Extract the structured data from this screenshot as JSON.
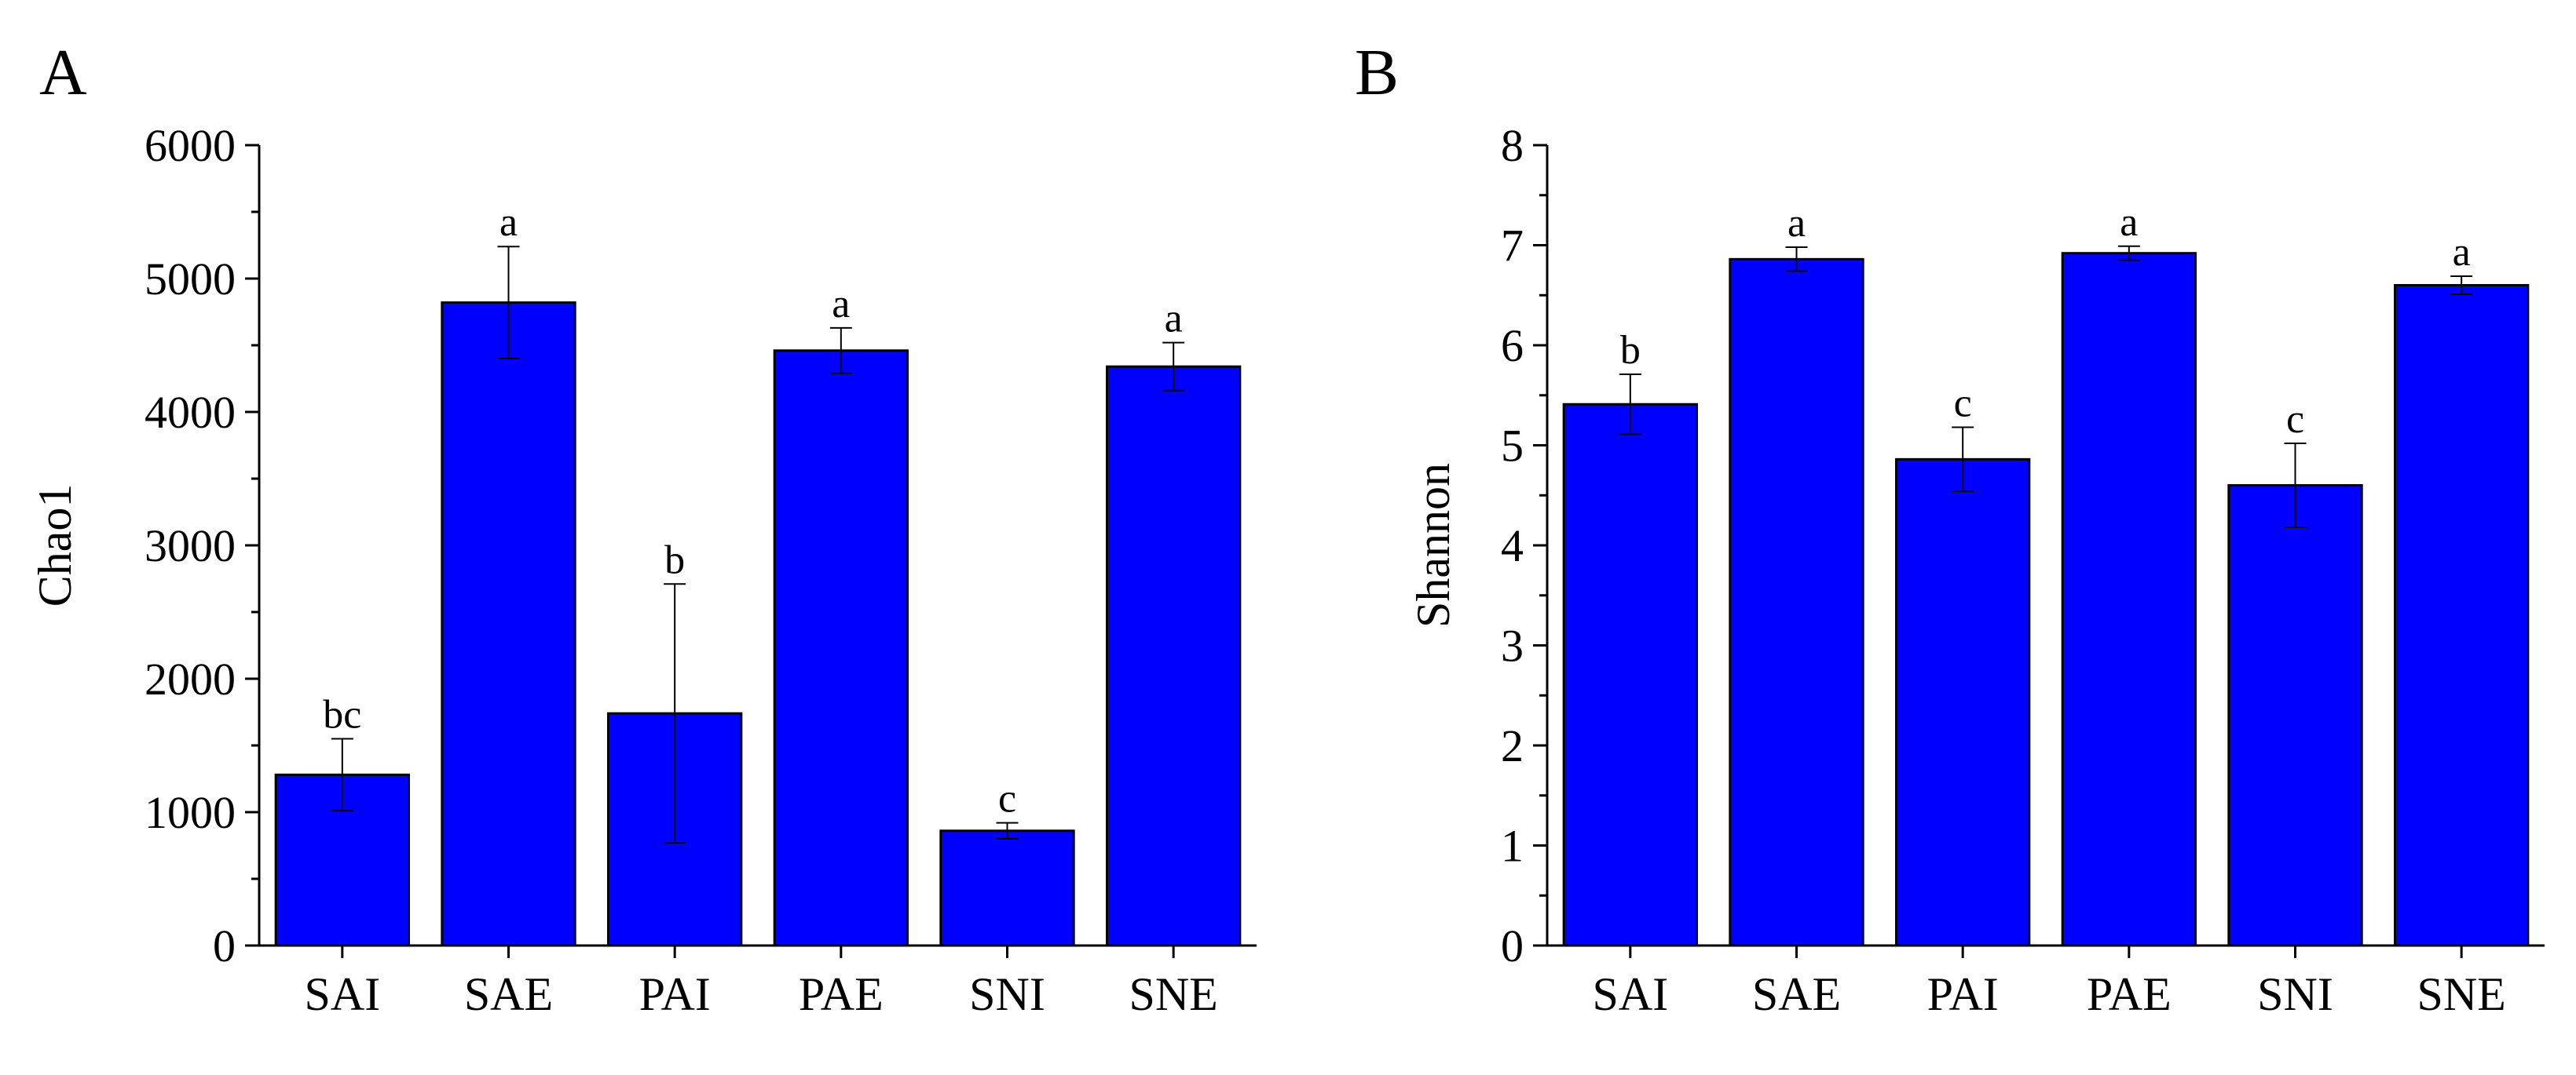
{
  "colors": {
    "bar": "#0000ff",
    "stroke": "#000000",
    "background": "#ffffff"
  },
  "chart_data": [
    {
      "panel": "A",
      "type": "bar",
      "categories": [
        "SAI",
        "SAE",
        "PAI",
        "PAE",
        "SNI",
        "SNE"
      ],
      "values": [
        1280,
        4820,
        1740,
        4460,
        860,
        4340
      ],
      "errors": [
        270,
        420,
        970,
        170,
        60,
        180
      ],
      "significance": [
        "bc",
        "a",
        "b",
        "a",
        "c",
        "a"
      ],
      "ylabel": "Chao1",
      "xlabel": "",
      "ylim": [
        0,
        6000
      ],
      "yticks": [
        "0",
        "1000",
        "2000",
        "3000",
        "4000",
        "5000",
        "6000"
      ],
      "yticks_values": [
        0,
        1000,
        2000,
        3000,
        4000,
        5000,
        6000
      ],
      "minor_tick_step": 500
    },
    {
      "panel": "B",
      "type": "bar",
      "categories": [
        "SAI",
        "SAE",
        "PAI",
        "PAE",
        "SNI",
        "SNE"
      ],
      "values": [
        5.41,
        6.86,
        4.86,
        6.92,
        4.6,
        6.6
      ],
      "errors": [
        0.3,
        0.12,
        0.32,
        0.07,
        0.42,
        0.09
      ],
      "significance": [
        "b",
        "a",
        "c",
        "a",
        "c",
        "a"
      ],
      "ylabel": "Shannon",
      "xlabel": "",
      "ylim": [
        0,
        8
      ],
      "yticks": [
        "0",
        "1",
        "2",
        "3",
        "4",
        "5",
        "6",
        "7",
        "8"
      ],
      "yticks_values": [
        0,
        1,
        2,
        3,
        4,
        5,
        6,
        7,
        8
      ],
      "minor_tick_step": 0.5
    }
  ]
}
